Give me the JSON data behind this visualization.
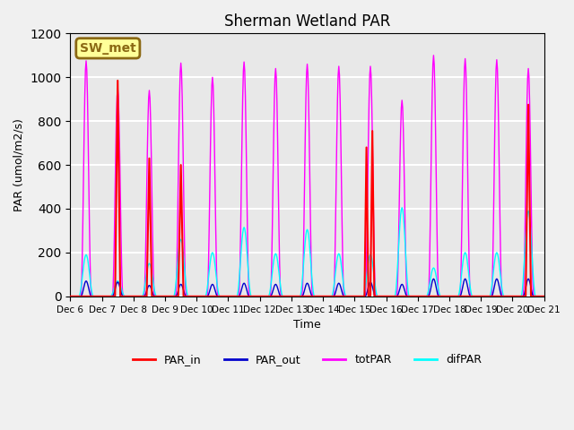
{
  "title": "Sherman Wetland PAR",
  "xlabel": "Time",
  "ylabel": "PAR (umol/m2/s)",
  "ylim": [
    0,
    1200
  ],
  "yticks": [
    0,
    200,
    400,
    600,
    800,
    1000,
    1200
  ],
  "num_days": 15,
  "start_day": 6,
  "colors": {
    "PAR_in": "#ff0000",
    "PAR_out": "#0000cd",
    "totPAR": "#ff00ff",
    "difPAR": "#00ffff"
  },
  "legend_label": "SW_met",
  "legend_box_color": "#ffff99",
  "legend_box_edge": "#8b6914",
  "background_color": "#e8e8e8",
  "grid_color": "#ffffff",
  "totPAR_peaks": [
    1075,
    950,
    940,
    1065,
    1000,
    1070,
    1040,
    1060,
    1050,
    1050,
    895,
    1100,
    1085,
    1080,
    1040
  ],
  "difPAR_peaks": [
    190,
    70,
    150,
    260,
    200,
    315,
    195,
    305,
    195,
    190,
    405,
    130,
    200,
    200,
    390
  ],
  "PAR_out_peaks": [
    70,
    65,
    50,
    55,
    55,
    60,
    55,
    60,
    60,
    65,
    55,
    80,
    80,
    80,
    80
  ]
}
